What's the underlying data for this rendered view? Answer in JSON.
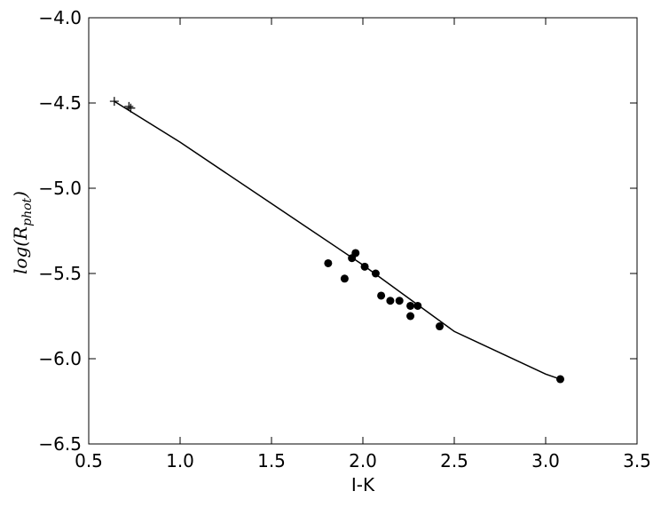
{
  "chart_data": {
    "type": "scatter",
    "xlabel": "I-K",
    "ylabel": {
      "main": "log(R",
      "sub": "phot",
      "close": ")"
    },
    "xlim": [
      0.5,
      3.5
    ],
    "ylim": [
      -6.5,
      -4.0
    ],
    "xticks": [
      0.5,
      {
        "value": 1.0,
        "label": "1.0"
      },
      1.5,
      {
        "value": 2.0,
        "label": "2.0"
      },
      2.5,
      {
        "value": 3.0,
        "label": "3.0"
      },
      3.5
    ],
    "yticks": [
      {
        "value": -6.5,
        "label": "−6.5"
      },
      {
        "value": -6.0,
        "label": "−6.0"
      },
      {
        "value": -5.5,
        "label": "−5.5"
      },
      {
        "value": -5.0,
        "label": "−5.0"
      },
      {
        "value": -4.5,
        "label": "−4.5"
      },
      {
        "value": -4.0,
        "label": "−4.0"
      }
    ],
    "series": [
      {
        "marker": "line",
        "color": "#000000",
        "x": [
          0.64,
          1.0,
          1.5,
          2.0,
          2.5,
          3.0,
          3.08
        ],
        "values": [
          -4.49,
          -4.73,
          -5.09,
          -5.45,
          -5.84,
          -6.09,
          -6.12
        ]
      },
      {
        "marker": "circle",
        "color": "#000000",
        "x": [
          1.81,
          1.9,
          1.94,
          1.96,
          2.01,
          2.07,
          2.1,
          2.15,
          2.2,
          2.26,
          2.3,
          2.26,
          2.42,
          3.08
        ],
        "values": [
          -5.44,
          -5.53,
          -5.41,
          -5.38,
          -5.46,
          -5.5,
          -5.63,
          -5.66,
          -5.66,
          -5.69,
          -5.69,
          -5.75,
          -5.81,
          -6.12
        ]
      },
      {
        "marker": "plus",
        "color": "#000000",
        "x": [
          0.64,
          0.72,
          0.73
        ],
        "values": [
          -4.49,
          -4.52,
          -4.53
        ]
      }
    ]
  }
}
